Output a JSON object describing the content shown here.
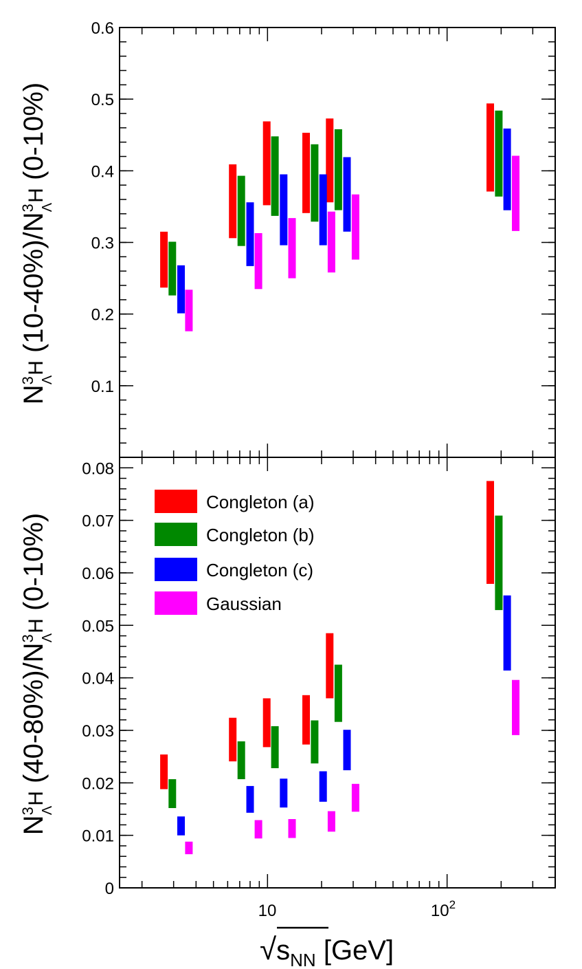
{
  "chart_data": [
    {
      "type": "bar",
      "panel": "top",
      "ylabel": {
        "pre": "N",
        "sup": "3",
        "sub": "Λ",
        "el": "H",
        "mid": " (10-40%)/N",
        "sup2": "3",
        "sub2": "Λ",
        "el2": "H",
        "post": " (0-10%)"
      },
      "ylim": [
        0,
        0.6
      ],
      "yticks": [
        0.1,
        0.2,
        0.3,
        0.4,
        0.5,
        0.6
      ],
      "ytick_labels": [
        "0.1",
        "0.2",
        "0.3",
        "0.4",
        "0.5",
        "0.6"
      ],
      "series": [
        {
          "name": "Congleton (a)",
          "color": "#ff0000",
          "bands": [
            [
              2.65,
              0.237,
              0.315
            ],
            [
              6.4,
              0.306,
              0.409
            ],
            [
              9.9,
              0.352,
              0.469
            ],
            [
              16.4,
              0.341,
              0.453
            ],
            [
              22.2,
              0.356,
              0.473
            ],
            [
              174,
              0.371,
              0.494
            ]
          ]
        },
        {
          "name": "Congleton (b)",
          "color": "#008800",
          "bands": [
            [
              2.95,
              0.226,
              0.301
            ],
            [
              7.15,
              0.295,
              0.393
            ],
            [
              11.0,
              0.337,
              0.448
            ],
            [
              18.3,
              0.329,
              0.437
            ],
            [
              24.8,
              0.345,
              0.458
            ],
            [
              194,
              0.364,
              0.484
            ]
          ]
        },
        {
          "name": "Congleton (c)",
          "color": "#0000ff",
          "bands": [
            [
              3.3,
              0.201,
              0.268
            ],
            [
              8.0,
              0.267,
              0.356
            ],
            [
              12.3,
              0.296,
              0.395
            ],
            [
              20.4,
              0.296,
              0.395
            ],
            [
              27.7,
              0.315,
              0.419
            ],
            [
              216,
              0.345,
              0.459
            ]
          ]
        },
        {
          "name": "Gaussian",
          "color": "#ff00ff",
          "bands": [
            [
              3.65,
              0.176,
              0.234
            ],
            [
              8.9,
              0.235,
              0.313
            ],
            [
              13.7,
              0.25,
              0.334
            ],
            [
              22.7,
              0.258,
              0.343
            ],
            [
              30.9,
              0.276,
              0.367
            ],
            [
              241,
              0.316,
              0.421
            ]
          ]
        }
      ]
    },
    {
      "type": "bar",
      "panel": "bottom",
      "ylabel": {
        "pre": "N",
        "sup": "3",
        "sub": "Λ",
        "el": "H",
        "mid": " (40-80%)/N",
        "sup2": "3",
        "sub2": "Λ",
        "el2": "H",
        "post": " (0-10%)"
      },
      "ylim": [
        0,
        0.082
      ],
      "yticks": [
        0,
        0.01,
        0.02,
        0.03,
        0.04,
        0.05,
        0.06,
        0.07,
        0.08
      ],
      "ytick_labels": [
        "0",
        "0.01",
        "0.02",
        "0.03",
        "0.04",
        "0.05",
        "0.06",
        "0.07",
        "0.08"
      ],
      "series": [
        {
          "name": "Congleton (a)",
          "color": "#ff0000",
          "bands": [
            [
              2.65,
              0.0188,
              0.0254
            ],
            [
              6.4,
              0.0241,
              0.0324
            ],
            [
              9.9,
              0.0268,
              0.0361
            ],
            [
              16.4,
              0.0273,
              0.0367
            ],
            [
              22.2,
              0.0361,
              0.0485
            ],
            [
              174,
              0.0579,
              0.0775
            ]
          ]
        },
        {
          "name": "Congleton (b)",
          "color": "#008800",
          "bands": [
            [
              2.95,
              0.0152,
              0.0207
            ],
            [
              7.15,
              0.0207,
              0.0279
            ],
            [
              11.0,
              0.0228,
              0.0308
            ],
            [
              18.3,
              0.0237,
              0.0319
            ],
            [
              24.8,
              0.0316,
              0.0425
            ],
            [
              194,
              0.0529,
              0.0709
            ]
          ]
        },
        {
          "name": "Congleton (c)",
          "color": "#0000ff",
          "bands": [
            [
              3.3,
              0.01,
              0.0136
            ],
            [
              8.0,
              0.0143,
              0.0194
            ],
            [
              12.3,
              0.0153,
              0.0208
            ],
            [
              20.4,
              0.0164,
              0.0222
            ],
            [
              27.7,
              0.0224,
              0.0301
            ],
            [
              216,
              0.0414,
              0.0557
            ]
          ]
        },
        {
          "name": "Gaussian",
          "color": "#ff00ff",
          "bands": [
            [
              3.65,
              0.0064,
              0.0088
            ],
            [
              8.9,
              0.0094,
              0.0129
            ],
            [
              13.7,
              0.0095,
              0.0131
            ],
            [
              22.7,
              0.0107,
              0.0146
            ],
            [
              30.9,
              0.0145,
              0.0198
            ],
            [
              241,
              0.0291,
              0.0396
            ]
          ]
        }
      ],
      "legend": {
        "position": "top-left",
        "entries": [
          "Congleton (a)",
          "Congleton (b)",
          "Congleton (c)",
          "Gaussian"
        ]
      }
    }
  ],
  "x_axis": {
    "scale": "log",
    "xlim": [
      1.5,
      400
    ],
    "label": {
      "pre": "√",
      "s": "s",
      "sub": "NN",
      "post": " [GeV]"
    },
    "major_ticks": [
      10,
      100
    ],
    "major_labels": [
      {
        "base": "10",
        "exp": ""
      },
      {
        "base": "10",
        "exp": "2"
      }
    ]
  }
}
